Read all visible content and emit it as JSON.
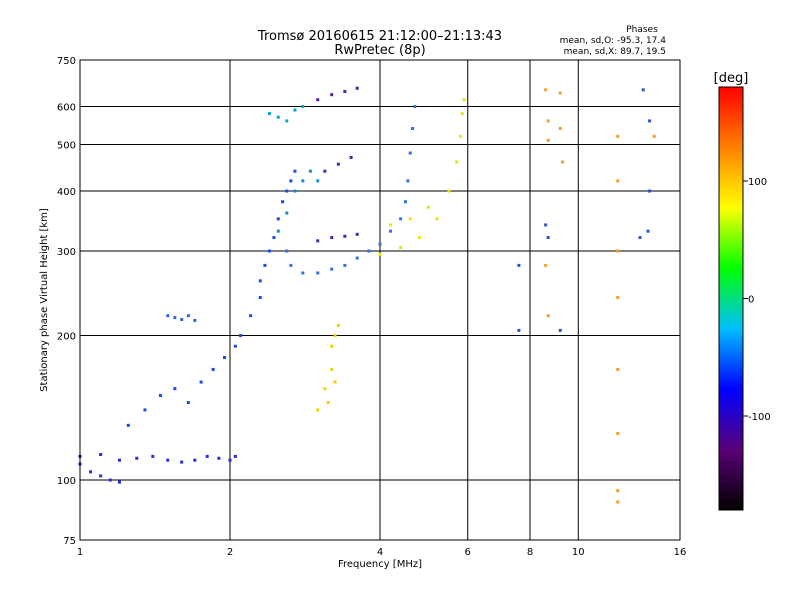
{
  "chart_data": {
    "type": "scatter",
    "title": "Tromsø 20160615 21:12:00–21:13:43",
    "subtitle": "RwPretec (8p)",
    "legend": {
      "heading": "Phases",
      "line1": "mean, sd,O: -95.3, 17.4",
      "line2": "mean, sd,X:  89.7, 19.5",
      "placement": "top-right"
    },
    "xlabel": "Frequency [MHz]",
    "ylabel": "Stationary phase Virtual Height [km]",
    "x_scale": "log",
    "y_scale": "log",
    "xlim": [
      1,
      16
    ],
    "ylim": [
      75,
      750
    ],
    "x_ticks": [
      1,
      2,
      4,
      6,
      8,
      10,
      16
    ],
    "x_tick_labels": [
      "1",
      "2",
      "4",
      "6",
      "8",
      "10",
      "16"
    ],
    "y_ticks": [
      75,
      100,
      200,
      300,
      400,
      500,
      600,
      750
    ],
    "y_tick_labels": [
      "75",
      "100",
      "200",
      "300",
      "400",
      "500",
      "600",
      "750"
    ],
    "grid": true,
    "colorbar": {
      "label": "[deg]",
      "range": [
        -180,
        180
      ],
      "ticks": [
        100,
        0,
        -100
      ],
      "tick_labels": [
        "100",
        "0",
        "-100"
      ],
      "stops": [
        "#000000",
        "#5a0078",
        "#0000ff",
        "#00bfff",
        "#00ff00",
        "#ffff00",
        "#ff8000",
        "#ff0000"
      ]
    },
    "series": [
      {
        "phase": -120,
        "color": "#2a2ae0",
        "points": [
          [
            1.0,
            108
          ],
          [
            1.05,
            104
          ],
          [
            1.1,
            102
          ],
          [
            1.15,
            100
          ],
          [
            1.2,
            99
          ],
          [
            1.0,
            112
          ],
          [
            1.1,
            113
          ],
          [
            1.2,
            110
          ],
          [
            1.3,
            111
          ],
          [
            1.4,
            112
          ],
          [
            1.5,
            110
          ],
          [
            1.6,
            109
          ],
          [
            1.7,
            110
          ],
          [
            1.8,
            112
          ],
          [
            1.9,
            111
          ],
          [
            2.0,
            110
          ],
          [
            2.05,
            112
          ]
        ]
      },
      {
        "phase": -110,
        "color": "#1a4ae8",
        "points": [
          [
            1.25,
            130
          ],
          [
            1.35,
            140
          ],
          [
            1.45,
            150
          ],
          [
            1.55,
            155
          ],
          [
            1.65,
            145
          ],
          [
            1.75,
            160
          ],
          [
            1.85,
            170
          ],
          [
            1.95,
            180
          ],
          [
            2.05,
            190
          ],
          [
            2.1,
            200
          ],
          [
            2.2,
            220
          ],
          [
            2.3,
            240
          ],
          [
            2.3,
            260
          ],
          [
            2.35,
            280
          ],
          [
            2.4,
            300
          ],
          [
            2.45,
            320
          ],
          [
            2.5,
            350
          ],
          [
            2.55,
            380
          ],
          [
            2.6,
            400
          ],
          [
            2.65,
            420
          ],
          [
            2.7,
            440
          ]
        ]
      },
      {
        "phase": -100,
        "color": "#2a6ad8",
        "points": [
          [
            1.5,
            220
          ],
          [
            1.55,
            218
          ],
          [
            1.6,
            216
          ],
          [
            1.65,
            220
          ],
          [
            1.7,
            215
          ]
        ]
      },
      {
        "phase": -90,
        "color": "#3070e0",
        "points": [
          [
            2.6,
            300
          ],
          [
            2.65,
            280
          ],
          [
            2.8,
            270
          ],
          [
            3.0,
            270
          ],
          [
            3.2,
            275
          ],
          [
            3.4,
            280
          ],
          [
            3.6,
            290
          ],
          [
            3.8,
            300
          ],
          [
            4.0,
            310
          ],
          [
            4.2,
            330
          ],
          [
            4.4,
            350
          ],
          [
            4.5,
            380
          ],
          [
            4.55,
            420
          ],
          [
            4.6,
            480
          ],
          [
            4.65,
            540
          ],
          [
            4.7,
            600
          ]
        ]
      },
      {
        "phase": -85,
        "color": "#1090d0",
        "points": [
          [
            2.5,
            330
          ],
          [
            2.6,
            360
          ],
          [
            2.7,
            400
          ],
          [
            2.8,
            420
          ],
          [
            2.9,
            440
          ],
          [
            3.0,
            420
          ]
        ]
      },
      {
        "phase": -75,
        "color": "#00a8e0",
        "points": [
          [
            2.4,
            580
          ],
          [
            2.5,
            570
          ],
          [
            2.6,
            560
          ],
          [
            2.7,
            590
          ],
          [
            2.8,
            600
          ]
        ]
      },
      {
        "phase": -130,
        "color": "#5020a0",
        "points": [
          [
            3.0,
            620
          ],
          [
            3.2,
            635
          ],
          [
            3.4,
            645
          ],
          [
            3.6,
            655
          ],
          [
            3.1,
            440
          ],
          [
            3.3,
            455
          ],
          [
            3.5,
            470
          ],
          [
            3.0,
            315
          ],
          [
            3.2,
            320
          ],
          [
            3.4,
            322
          ],
          [
            3.6,
            325
          ]
        ]
      },
      {
        "phase": 100,
        "color": "#e8e800",
        "points": [
          [
            4.0,
            295
          ],
          [
            4.4,
            305
          ],
          [
            4.8,
            320
          ],
          [
            5.2,
            350
          ],
          [
            5.5,
            400
          ],
          [
            5.7,
            460
          ],
          [
            5.8,
            520
          ],
          [
            5.85,
            580
          ],
          [
            5.9,
            620
          ],
          [
            4.2,
            340
          ],
          [
            4.6,
            350
          ],
          [
            5.0,
            370
          ]
        ]
      },
      {
        "phase": 110,
        "color": "#f0d000",
        "points": [
          [
            3.2,
            190
          ],
          [
            3.25,
            200
          ],
          [
            3.3,
            210
          ],
          [
            3.2,
            170
          ],
          [
            3.25,
            160
          ],
          [
            3.1,
            155
          ],
          [
            3.15,
            145
          ],
          [
            3.0,
            140
          ]
        ]
      },
      {
        "phase": 120,
        "color": "#f0a030",
        "points": [
          [
            8.6,
            650
          ],
          [
            8.7,
            560
          ],
          [
            8.7,
            510
          ],
          [
            8.6,
            280
          ],
          [
            8.7,
            220
          ],
          [
            9.2,
            640
          ],
          [
            9.2,
            540
          ],
          [
            9.3,
            460
          ],
          [
            12.0,
            520
          ],
          [
            12.0,
            420
          ],
          [
            12.0,
            300
          ],
          [
            12.0,
            240
          ],
          [
            12.0,
            170
          ],
          [
            12.0,
            125
          ],
          [
            12.0,
            95
          ],
          [
            12.0,
            90
          ],
          [
            14.2,
            520
          ]
        ]
      },
      {
        "phase": -115,
        "color": "#3050d0",
        "points": [
          [
            7.6,
            280
          ],
          [
            7.6,
            205
          ],
          [
            8.6,
            340
          ],
          [
            8.7,
            320
          ],
          [
            9.2,
            205
          ],
          [
            13.3,
            320
          ],
          [
            13.8,
            330
          ],
          [
            13.9,
            400
          ],
          [
            13.9,
            560
          ],
          [
            13.5,
            650
          ]
        ]
      }
    ]
  }
}
